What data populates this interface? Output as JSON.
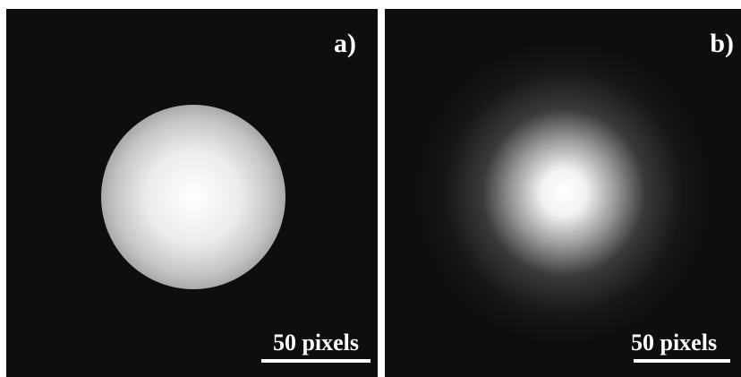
{
  "panels": [
    {
      "label": "a)",
      "scale_bar": "50 pixels"
    },
    {
      "label": "b)",
      "scale_bar": "50 pixels"
    }
  ]
}
